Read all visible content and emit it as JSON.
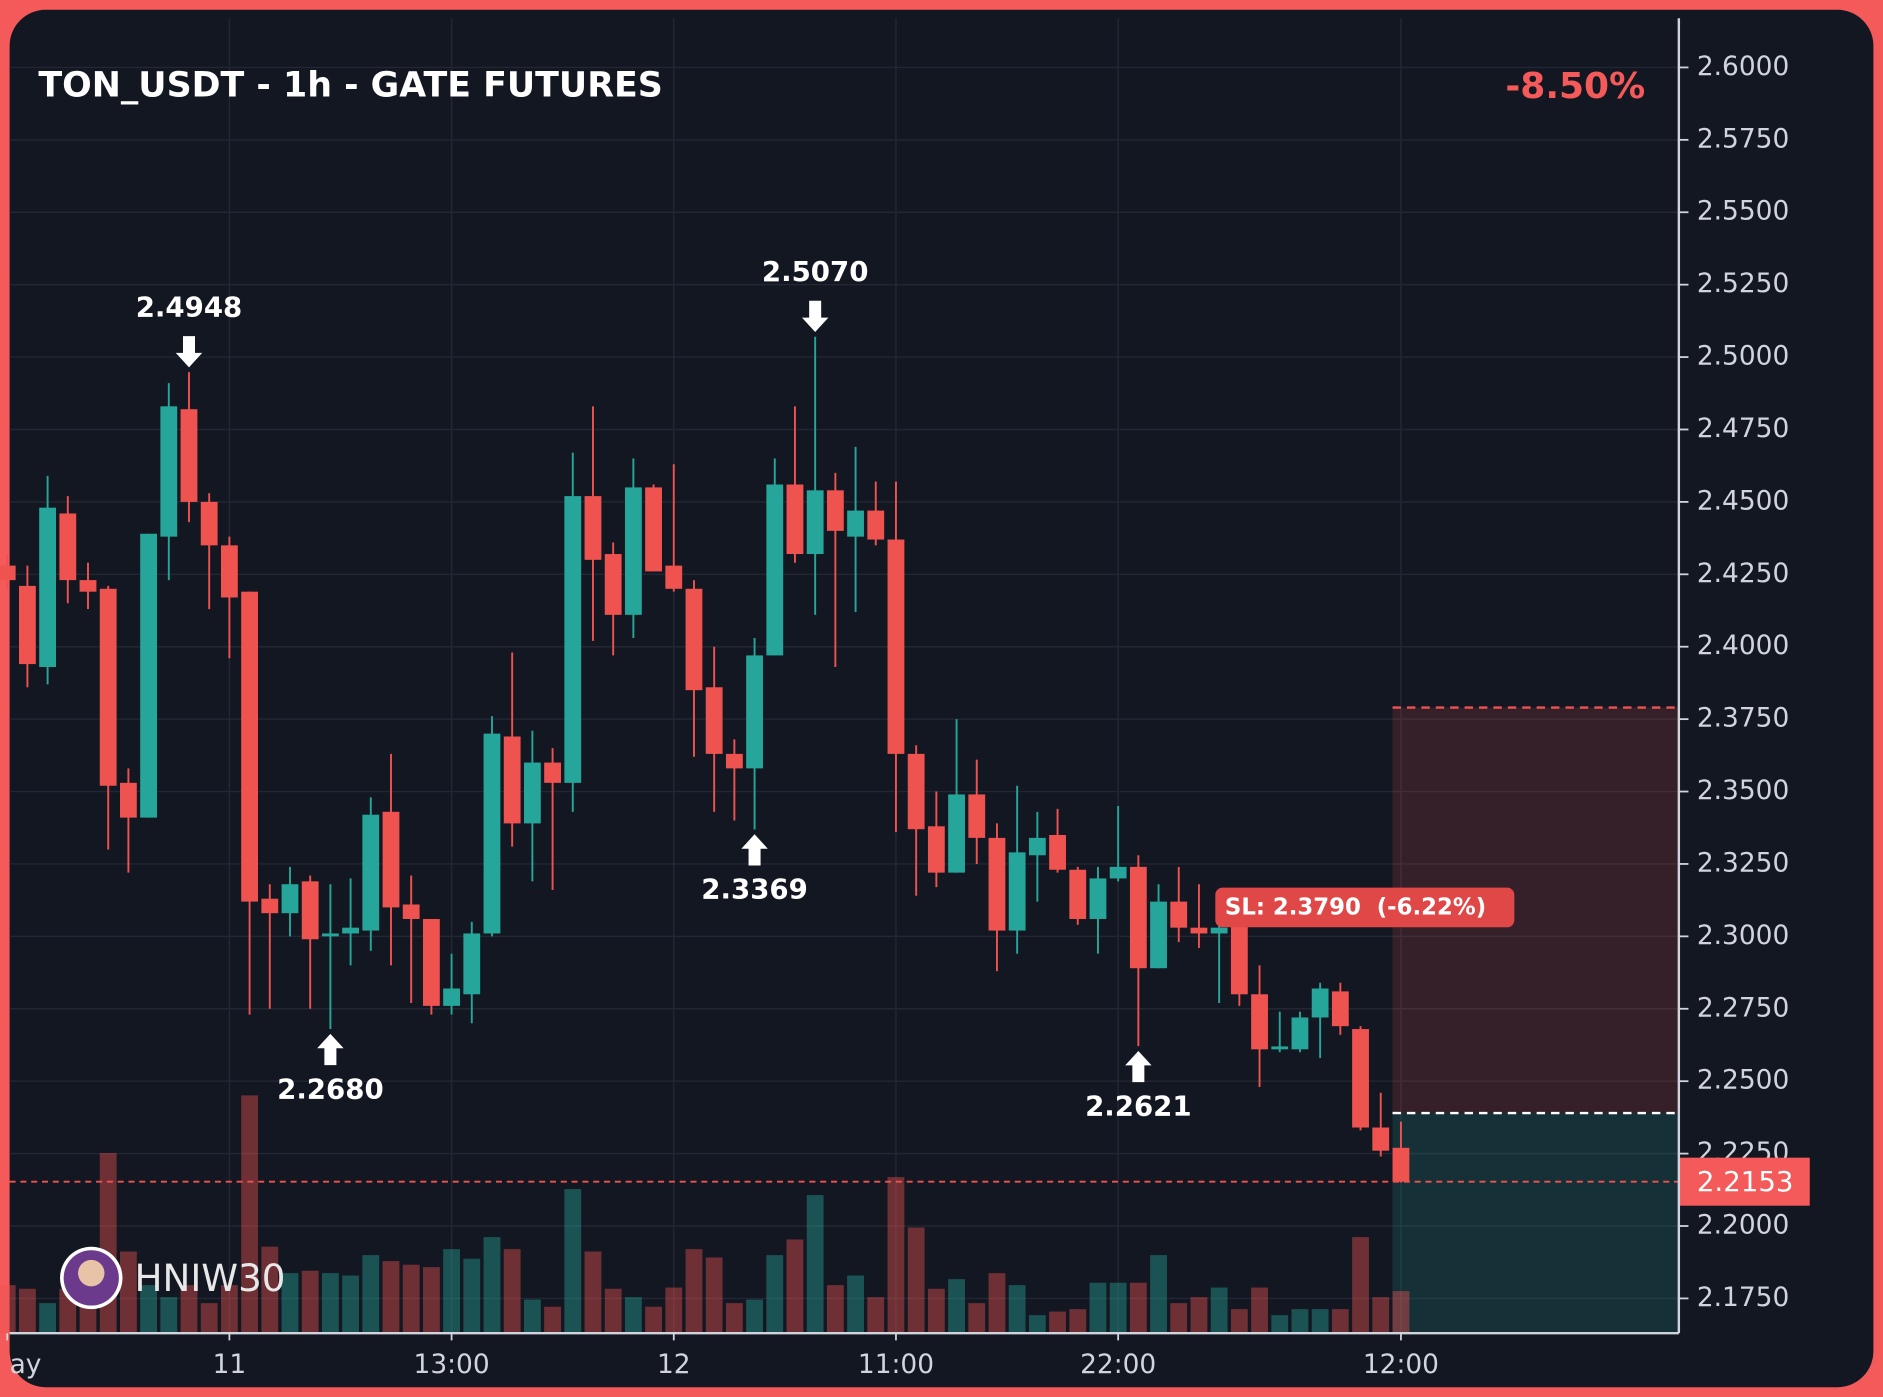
{
  "chart_data": {
    "type": "candlestick",
    "title": "TON_USDT - 1h - GATE FUTURES",
    "change": "-8.50%",
    "watermark": "HNIW30",
    "categories": [
      "ay",
      null,
      null,
      null,
      null,
      null,
      null,
      null,
      null,
      null,
      null,
      "11",
      null,
      null,
      null,
      null,
      null,
      null,
      null,
      null,
      null,
      null,
      "13:00",
      null,
      null,
      null,
      null,
      null,
      null,
      null,
      null,
      null,
      null,
      "12",
      null,
      null,
      null,
      null,
      null,
      null,
      null,
      null,
      null,
      null,
      "11:00",
      null,
      null,
      null,
      null,
      null,
      null,
      null,
      null,
      null,
      null,
      "22:00",
      null,
      null,
      null,
      null,
      null,
      null,
      null,
      null,
      null,
      null,
      null,
      null,
      null,
      "12:00"
    ],
    "open": [
      2.428,
      2.421,
      2.393,
      2.446,
      2.423,
      2.42,
      2.353,
      2.341,
      2.438,
      2.482,
      2.45,
      2.435,
      2.419,
      2.313,
      2.308,
      2.319,
      2.3,
      2.301,
      2.302,
      2.343,
      2.311,
      2.306,
      2.276,
      2.28,
      2.301,
      2.369,
      2.339,
      2.36,
      2.353,
      2.452,
      2.432,
      2.411,
      2.455,
      2.428,
      2.42,
      2.386,
      2.363,
      2.358,
      2.397,
      2.456,
      2.432,
      2.454,
      2.438,
      2.447,
      2.437,
      2.363,
      2.338,
      2.322,
      2.349,
      2.334,
      2.302,
      2.328,
      2.335,
      2.323,
      2.306,
      2.32,
      2.324,
      2.289,
      2.312,
      2.303,
      2.301,
      2.304,
      2.28,
      2.261,
      2.261,
      2.272,
      2.281,
      2.268,
      2.234,
      2.227
    ],
    "high": [
      2.432,
      2.428,
      2.459,
      2.452,
      2.429,
      2.421,
      2.358,
      2.439,
      2.491,
      2.4948,
      2.453,
      2.438,
      2.419,
      2.318,
      2.324,
      2.321,
      2.318,
      2.32,
      2.348,
      2.363,
      2.321,
      2.306,
      2.294,
      2.305,
      2.376,
      2.398,
      2.371,
      2.365,
      2.467,
      2.483,
      2.436,
      2.465,
      2.456,
      2.463,
      2.423,
      2.4,
      2.368,
      2.403,
      2.465,
      2.483,
      2.507,
      2.46,
      2.469,
      2.457,
      2.457,
      2.366,
      2.35,
      2.375,
      2.361,
      2.339,
      2.352,
      2.343,
      2.344,
      2.324,
      2.324,
      2.345,
      2.328,
      2.318,
      2.324,
      2.318,
      2.31,
      2.309,
      2.29,
      2.274,
      2.274,
      2.284,
      2.284,
      2.269,
      2.246,
      2.236
    ],
    "low": [
      2.42,
      2.386,
      2.387,
      2.415,
      2.413,
      2.33,
      2.322,
      2.341,
      2.423,
      2.443,
      2.413,
      2.396,
      2.273,
      2.275,
      2.3,
      2.275,
      2.268,
      2.29,
      2.295,
      2.29,
      2.277,
      2.273,
      2.273,
      2.27,
      2.3,
      2.331,
      2.319,
      2.316,
      2.343,
      2.402,
      2.397,
      2.403,
      2.426,
      2.419,
      2.362,
      2.343,
      2.34,
      2.3369,
      2.397,
      2.429,
      2.411,
      2.393,
      2.412,
      2.435,
      2.336,
      2.314,
      2.317,
      2.322,
      2.325,
      2.288,
      2.294,
      2.312,
      2.322,
      2.304,
      2.294,
      2.319,
      2.2621,
      2.289,
      2.298,
      2.296,
      2.277,
      2.276,
      2.248,
      2.26,
      2.26,
      2.258,
      2.266,
      2.233,
      2.224,
      2.215
    ],
    "close": [
      2.423,
      2.394,
      2.448,
      2.423,
      2.419,
      2.352,
      2.341,
      2.439,
      2.483,
      2.45,
      2.435,
      2.417,
      2.312,
      2.308,
      2.318,
      2.299,
      2.301,
      2.303,
      2.342,
      2.31,
      2.306,
      2.276,
      2.282,
      2.301,
      2.37,
      2.339,
      2.36,
      2.353,
      2.452,
      2.43,
      2.411,
      2.455,
      2.426,
      2.42,
      2.385,
      2.363,
      2.358,
      2.397,
      2.456,
      2.432,
      2.454,
      2.44,
      2.447,
      2.437,
      2.363,
      2.337,
      2.322,
      2.349,
      2.334,
      2.302,
      2.329,
      2.334,
      2.323,
      2.306,
      2.32,
      2.324,
      2.289,
      2.312,
      2.303,
      2.301,
      2.303,
      2.28,
      2.261,
      2.262,
      2.272,
      2.282,
      2.269,
      2.234,
      2.226,
      2.2153
    ],
    "volume": [
      40,
      37,
      25,
      37,
      37,
      150,
      68,
      40,
      30,
      40,
      25,
      40,
      198,
      72,
      50,
      52,
      50,
      48,
      65,
      60,
      57,
      55,
      70,
      62,
      80,
      70,
      28,
      22,
      120,
      68,
      37,
      30,
      22,
      38,
      70,
      63,
      25,
      28,
      65,
      78,
      115,
      40,
      48,
      30,
      130,
      88,
      37,
      45,
      25,
      50,
      40,
      15,
      18,
      20,
      42,
      42,
      42,
      65,
      25,
      30,
      38,
      20,
      38,
      15,
      20,
      20,
      20,
      80,
      30,
      35
    ],
    "high_value_labels": [
      null,
      null,
      null,
      null,
      null,
      null,
      null,
      null,
      null,
      "2.4948",
      null,
      null,
      null,
      null,
      null,
      null,
      null,
      null,
      null,
      null,
      null,
      null,
      null,
      null,
      null,
      null,
      null,
      null,
      null,
      null,
      null,
      null,
      null,
      null,
      null,
      null,
      null,
      null,
      null,
      null,
      "2.5070",
      null,
      null,
      null,
      null,
      null,
      null,
      null,
      null,
      null,
      null,
      null,
      null,
      null,
      null,
      null,
      null,
      null,
      null,
      null,
      null,
      null,
      null,
      null,
      null,
      null,
      null,
      null,
      null,
      null
    ],
    "low_value_labels": [
      null,
      null,
      null,
      null,
      null,
      null,
      null,
      null,
      null,
      null,
      null,
      null,
      null,
      null,
      null,
      null,
      "2.2680",
      null,
      null,
      null,
      null,
      null,
      null,
      null,
      null,
      null,
      null,
      null,
      null,
      null,
      null,
      null,
      null,
      null,
      null,
      null,
      null,
      "2.3369",
      null,
      null,
      null,
      null,
      null,
      null,
      null,
      null,
      null,
      null,
      null,
      null,
      null,
      null,
      null,
      null,
      null,
      null,
      "2.2621",
      null,
      null,
      null,
      null,
      null,
      null,
      null,
      null,
      null,
      null,
      null,
      null,
      null
    ],
    "colors": {
      "up": "#26a69a",
      "down": "#ef5350"
    },
    "ylim": [
      2.163,
      2.617
    ],
    "volume_ylim": [
      0,
      1000
    ],
    "yticks": [
      {
        "value": 2.175,
        "label": "2.1750"
      },
      {
        "value": 2.2,
        "label": "2.2000"
      },
      {
        "value": 2.225,
        "label": "2.2250"
      },
      {
        "value": 2.25,
        "label": "2.2500"
      },
      {
        "value": 2.275,
        "label": "2.2750"
      },
      {
        "value": 2.3,
        "label": "2.3000"
      },
      {
        "value": 2.325,
        "label": "2.3250"
      },
      {
        "value": 2.35,
        "label": "2.3500"
      },
      {
        "value": 2.375,
        "label": "2.3750"
      },
      {
        "value": 2.4,
        "label": "2.4000"
      },
      {
        "value": 2.425,
        "label": "2.4250"
      },
      {
        "value": 2.45,
        "label": "2.4500"
      },
      {
        "value": 2.475,
        "label": "2.4750"
      },
      {
        "value": 2.5,
        "label": "2.5000"
      },
      {
        "value": 2.525,
        "label": "2.5250"
      },
      {
        "value": 2.55,
        "label": "2.5500"
      },
      {
        "value": 2.575,
        "label": "2.5750"
      },
      {
        "value": 2.6,
        "label": "2.6000"
      }
    ],
    "grid": true,
    "position": {
      "entry": 2.239,
      "stop_loss": 2.379,
      "stop_loss_label": "SL: 2.3790  (-6.22%)"
    }
  }
}
